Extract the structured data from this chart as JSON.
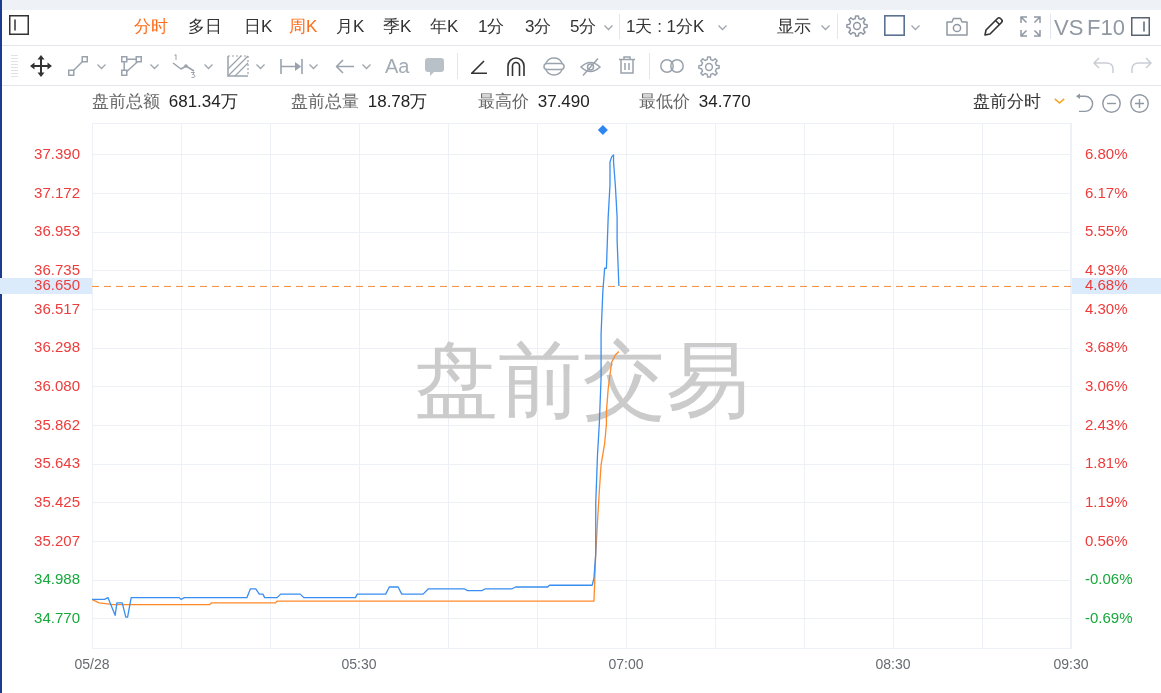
{
  "chart_data": {
    "type": "line",
    "xlim": [
      4,
      9.5
    ],
    "xticks": [
      {
        "value": 4,
        "label": "05/28"
      },
      {
        "value": 4.5,
        "label": null
      },
      {
        "value": 5,
        "label": null
      },
      {
        "value": 5.5,
        "label": "05:30"
      },
      {
        "value": 6,
        "label": null
      },
      {
        "value": 6.5,
        "label": null
      },
      {
        "value": 7,
        "label": "07:00"
      },
      {
        "value": 7.5,
        "label": null
      },
      {
        "value": 8,
        "label": null
      },
      {
        "value": 8.5,
        "label": "08:30"
      },
      {
        "value": 9,
        "label": null
      },
      {
        "value": 9.5,
        "label": "09:30"
      }
    ],
    "ylim": [
      34.6,
      37.57
    ],
    "yticks": [
      {
        "value": 34.77,
        "label": "34.770"
      },
      {
        "value": 34.988,
        "label": "34.988"
      },
      {
        "value": 35.207,
        "label": "35.207"
      },
      {
        "value": 35.425,
        "label": "35.425"
      },
      {
        "value": 35.643,
        "label": "35.643"
      },
      {
        "value": 35.862,
        "label": "35.862"
      },
      {
        "value": 36.08,
        "label": "36.080"
      },
      {
        "value": 36.298,
        "label": "36.298"
      },
      {
        "value": 36.517,
        "label": "36.517"
      },
      {
        "value": 36.735,
        "label": "36.735"
      },
      {
        "value": 36.953,
        "label": "36.953"
      },
      {
        "value": 37.172,
        "label": "37.172"
      },
      {
        "value": 37.39,
        "label": "37.390"
      }
    ],
    "y2lim": [
      -1.17,
      7.31
    ],
    "y2ticks": [
      {
        "value": -0.69,
        "label": "-0.69%"
      },
      {
        "value": -0.06,
        "label": "-0.06%"
      },
      {
        "value": 0.56,
        "label": "0.56%"
      },
      {
        "value": 1.19,
        "label": "1.19%"
      },
      {
        "value": 1.81,
        "label": "1.81%"
      },
      {
        "value": 2.43,
        "label": "2.43%"
      },
      {
        "value": 3.06,
        "label": "3.06%"
      },
      {
        "value": 3.68,
        "label": "3.68%"
      },
      {
        "value": 4.3,
        "label": "4.30%"
      },
      {
        "value": 4.93,
        "label": "4.93%"
      },
      {
        "value": 5.55,
        "label": "5.55%"
      },
      {
        "value": 6.17,
        "label": "6.17%"
      },
      {
        "value": 6.8,
        "label": "6.80%"
      }
    ],
    "grid": true,
    "series": [
      {
        "color": "#3a8ef0",
        "x": [
          4.0,
          4.07,
          4.09,
          4.13,
          4.14,
          4.17,
          4.19,
          4.2,
          4.22,
          4.49,
          4.5,
          4.52,
          4.87,
          4.89,
          4.92,
          4.94,
          4.96,
          4.97,
          5.04,
          5.06,
          5.17,
          5.19,
          5.48,
          5.49,
          5.65,
          5.67,
          5.72,
          5.74,
          5.86,
          5.89,
          6.09,
          6.11,
          6.19,
          6.21,
          6.36,
          6.38,
          6.56,
          6.57,
          6.81,
          6.82,
          6.83,
          6.83,
          6.84,
          6.85,
          6.86,
          6.86,
          6.87,
          6.88,
          6.89,
          6.9,
          6.91,
          6.91,
          6.92,
          6.93,
          6.93,
          6.94,
          6.95,
          6.95,
          6.96
        ],
        "values": [
          34.88,
          34.88,
          34.89,
          34.79,
          34.86,
          34.86,
          34.78,
          34.78,
          34.89,
          34.89,
          34.88,
          34.89,
          34.89,
          34.94,
          34.94,
          34.91,
          34.91,
          34.89,
          34.89,
          34.91,
          34.91,
          34.89,
          34.89,
          34.91,
          34.91,
          34.95,
          34.95,
          34.91,
          34.91,
          34.94,
          34.94,
          34.93,
          34.93,
          34.94,
          34.94,
          34.95,
          34.95,
          34.96,
          34.96,
          35.0,
          35.14,
          35.42,
          35.7,
          35.87,
          36.13,
          36.38,
          36.62,
          36.75,
          36.75,
          37.04,
          37.22,
          37.35,
          37.38,
          37.39,
          37.35,
          37.22,
          37.04,
          36.91,
          36.65
        ]
      },
      {
        "color": "#ff8a2a",
        "x": [
          4.0,
          4.04,
          4.12,
          4.66,
          4.67,
          5.03,
          5.04,
          6.82,
          6.83,
          6.84,
          6.85,
          6.86,
          6.88,
          6.89,
          6.89,
          6.9,
          6.91,
          6.92,
          6.94,
          6.96
        ],
        "values": [
          34.88,
          34.86,
          34.85,
          34.85,
          34.86,
          34.86,
          34.87,
          34.87,
          35.14,
          35.32,
          35.49,
          35.64,
          35.76,
          35.87,
          35.94,
          36.07,
          36.15,
          36.22,
          36.26,
          36.28
        ]
      },
      {
        "type": "scatter",
        "color": "#2f86f0",
        "marker": "diamond",
        "x": [
          6.87
        ],
        "values": [
          37.53
        ]
      }
    ],
    "ref_lines": [
      {
        "axis": "y",
        "value": 36.65,
        "label": "36.650",
        "color": "#f28c3a",
        "line_style": "dashed"
      }
    ],
    "annotations": [
      "分时",
      "多日",
      "日K",
      "周K",
      "月K",
      "季K",
      "年K",
      "1分",
      "3分",
      "5分",
      "1天 : 1分K",
      "显示",
      "VS",
      "F10",
      "Aa",
      "盘前总额 681.34万",
      "盘前总量 18.78万",
      "最高价 37.490",
      "最低价 34.770",
      "盘前分时",
      "盘前交易",
      {
        "text": "4.68%",
        "x": 9.5,
        "y": 36.65
      }
    ]
  }
}
